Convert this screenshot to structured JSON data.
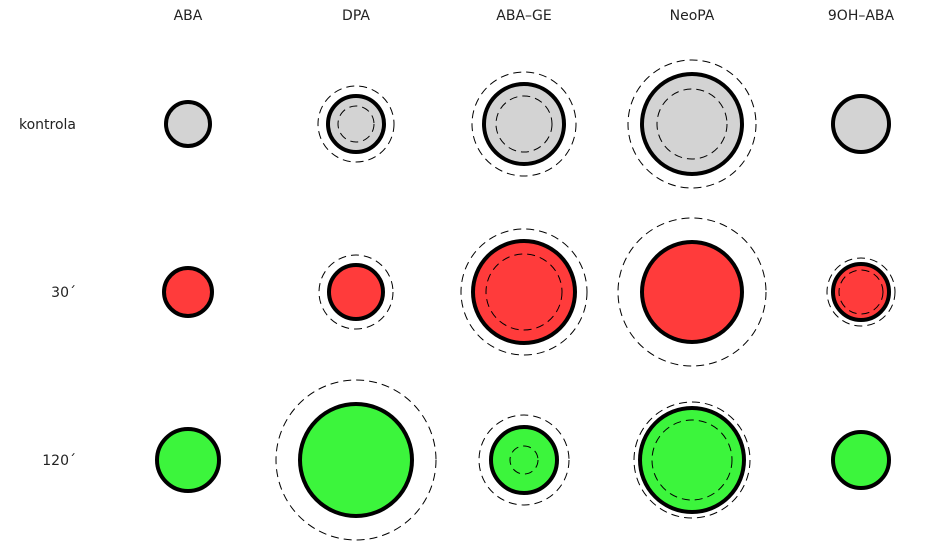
{
  "chart_data": {
    "type": "bubble-grid",
    "categories": [
      "ABA",
      "DPA",
      "ABA–GE",
      "NeoPA",
      "9OH–ABA"
    ],
    "series": [
      {
        "name": "kontrola",
        "color": "#d3d3d3",
        "values": [
          22,
          28,
          40,
          50,
          28
        ],
        "upper": [
          null,
          38,
          52,
          64,
          null
        ],
        "lower": [
          null,
          18,
          28,
          35,
          null
        ]
      },
      {
        "name": "30´",
        "color": "#ff3b3b",
        "values": [
          24,
          27,
          51,
          50,
          28
        ],
        "upper": [
          null,
          37,
          63,
          74,
          34
        ],
        "lower": [
          null,
          null,
          38,
          null,
          22
        ]
      },
      {
        "name": "120´",
        "color": "#3cf53c",
        "values": [
          31,
          56,
          33,
          52,
          28
        ],
        "upper": [
          null,
          80,
          45,
          58,
          null
        ],
        "lower": [
          null,
          null,
          14,
          40,
          null
        ]
      }
    ]
  }
}
